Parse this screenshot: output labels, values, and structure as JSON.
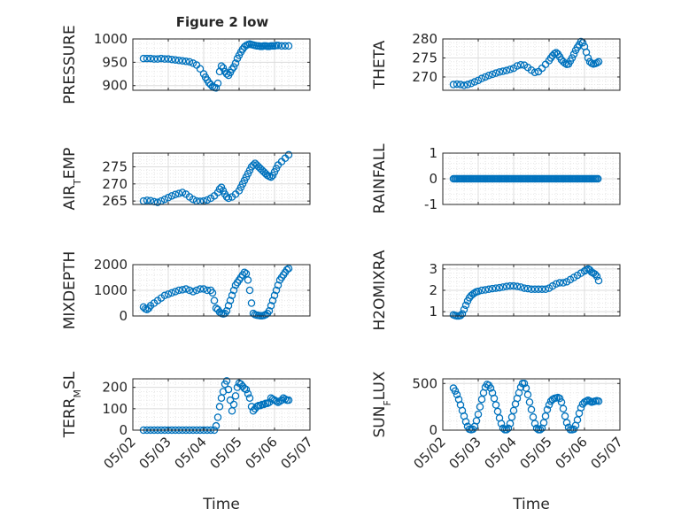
{
  "figure": {
    "title": "Figure 2 low"
  },
  "colors": {
    "marker": "#0072BD",
    "axis": "#262626",
    "grid": "#d9d9d9"
  },
  "chart_data": [
    {
      "type": "scatter",
      "title": "Figure 2 low",
      "xlabel": "",
      "ylabel": "PRESSURE",
      "ylim": [
        890,
        1000
      ],
      "yticks": [
        900,
        950,
        1000
      ],
      "yticklabels": [
        "900",
        "950",
        "1000"
      ],
      "xlim": [
        0,
        5
      ],
      "grid": true,
      "x": [
        0.3,
        0.4,
        0.5,
        0.6,
        0.7,
        0.8,
        0.9,
        1.0,
        1.1,
        1.2,
        1.3,
        1.4,
        1.5,
        1.6,
        1.7,
        1.8,
        1.9,
        2.0,
        2.05,
        2.1,
        2.15,
        2.2,
        2.25,
        2.3,
        2.35,
        2.4,
        2.45,
        2.5,
        2.55,
        2.6,
        2.65,
        2.7,
        2.75,
        2.8,
        2.85,
        2.9,
        2.95,
        3.0,
        3.05,
        3.1,
        3.15,
        3.2,
        3.25,
        3.3,
        3.35,
        3.4,
        3.45,
        3.5,
        3.55,
        3.6,
        3.65,
        3.7,
        3.75,
        3.8,
        3.85,
        3.9,
        3.95,
        4.0,
        4.05,
        4.1,
        4.2,
        4.3,
        4.4
      ],
      "y": [
        958,
        958,
        958,
        957,
        957,
        958,
        957,
        957,
        956,
        955,
        954,
        953,
        952,
        951,
        948,
        944,
        936,
        925,
        918,
        912,
        906,
        902,
        898,
        896,
        895,
        905,
        930,
        942,
        938,
        930,
        925,
        922,
        928,
        935,
        940,
        948,
        958,
        965,
        972,
        978,
        983,
        986,
        988,
        989,
        988,
        987,
        986,
        985,
        985,
        984,
        984,
        985,
        985,
        984,
        984,
        985,
        985,
        985,
        986,
        986,
        985,
        985,
        985
      ]
    },
    {
      "type": "scatter",
      "xlabel": "",
      "ylabel": "THETA",
      "ylim": [
        266.5,
        280
      ],
      "yticks": [
        270,
        275,
        280
      ],
      "yticklabels": [
        "270",
        "275",
        "280"
      ],
      "xlim": [
        0,
        5
      ],
      "grid": true,
      "x": [
        0.3,
        0.4,
        0.5,
        0.6,
        0.7,
        0.8,
        0.9,
        1.0,
        1.1,
        1.2,
        1.3,
        1.4,
        1.5,
        1.6,
        1.7,
        1.8,
        1.9,
        2.0,
        2.1,
        2.2,
        2.3,
        2.4,
        2.5,
        2.6,
        2.7,
        2.8,
        2.9,
        3.0,
        3.05,
        3.1,
        3.15,
        3.2,
        3.25,
        3.3,
        3.35,
        3.4,
        3.45,
        3.5,
        3.55,
        3.6,
        3.65,
        3.7,
        3.75,
        3.8,
        3.85,
        3.9,
        3.95,
        4.0,
        4.05,
        4.1,
        4.15,
        4.2,
        4.25,
        4.3,
        4.35,
        4.4
      ],
      "y": [
        268.0,
        268.1,
        268.0,
        267.8,
        268.0,
        268.3,
        268.7,
        269.1,
        269.6,
        270.0,
        270.4,
        270.7,
        271.0,
        271.3,
        271.5,
        271.7,
        272.0,
        272.3,
        272.9,
        273.2,
        273.1,
        272.5,
        271.8,
        271.2,
        271.4,
        272.3,
        273.3,
        274.3,
        275.0,
        275.6,
        276.1,
        276.4,
        276.0,
        275.3,
        274.5,
        274.0,
        273.6,
        273.3,
        273.4,
        274.2,
        275.0,
        276.0,
        277.0,
        277.8,
        278.5,
        279.3,
        279.0,
        278.0,
        276.5,
        275.0,
        274.0,
        273.6,
        273.4,
        273.5,
        273.7,
        274.0
      ]
    },
    {
      "type": "scatter",
      "xlabel": "",
      "ylabel": "AIR_TEMP",
      "ylim": [
        264,
        279
      ],
      "yticks": [
        265,
        270,
        275
      ],
      "yticklabels": [
        "265",
        "270",
        "275"
      ],
      "xlim": [
        0,
        5
      ],
      "grid": true,
      "x": [
        0.3,
        0.4,
        0.5,
        0.6,
        0.7,
        0.8,
        0.9,
        1.0,
        1.1,
        1.2,
        1.3,
        1.4,
        1.5,
        1.6,
        1.7,
        1.8,
        1.9,
        2.0,
        2.1,
        2.2,
        2.3,
        2.4,
        2.45,
        2.5,
        2.55,
        2.6,
        2.65,
        2.7,
        2.8,
        2.9,
        3.0,
        3.05,
        3.1,
        3.15,
        3.2,
        3.25,
        3.3,
        3.35,
        3.4,
        3.45,
        3.5,
        3.55,
        3.6,
        3.65,
        3.7,
        3.75,
        3.8,
        3.85,
        3.9,
        3.95,
        4.0,
        4.05,
        4.1,
        4.2,
        4.3,
        4.4
      ],
      "y": [
        265.0,
        265.2,
        265.1,
        264.8,
        264.6,
        265.0,
        265.5,
        266.0,
        266.5,
        266.9,
        267.2,
        267.5,
        267.0,
        266.2,
        265.5,
        265.0,
        264.9,
        265.0,
        265.3,
        265.8,
        266.5,
        267.5,
        268.5,
        269.0,
        268.0,
        267.0,
        266.2,
        265.8,
        266.2,
        267.0,
        268.0,
        269.0,
        270.0,
        271.0,
        272.0,
        273.0,
        274.0,
        275.0,
        275.5,
        276.0,
        275.5,
        275.0,
        274.5,
        274.0,
        273.5,
        273.0,
        272.5,
        272.2,
        272.0,
        272.5,
        273.5,
        274.5,
        275.5,
        276.5,
        277.5,
        278.5
      ]
    },
    {
      "type": "scatter",
      "xlabel": "",
      "ylabel": "RAINFALL",
      "ylim": [
        -1,
        1
      ],
      "yticks": [
        -1,
        0,
        1
      ],
      "yticklabels": [
        "-1",
        "0",
        "1"
      ],
      "xlim": [
        0,
        5
      ],
      "grid": true,
      "x_range": [
        0.3,
        4.4
      ],
      "constant_value": 0
    },
    {
      "type": "scatter",
      "xlabel": "",
      "ylabel": "MIXDEPTH",
      "ylim": [
        0,
        2000
      ],
      "yticks": [
        0,
        1000,
        2000
      ],
      "yticklabels": [
        "0",
        "1000",
        "2000"
      ],
      "xlim": [
        0,
        5
      ],
      "grid": true,
      "x": [
        0.3,
        0.35,
        0.4,
        0.45,
        0.5,
        0.6,
        0.7,
        0.8,
        0.9,
        1.0,
        1.1,
        1.2,
        1.3,
        1.4,
        1.5,
        1.6,
        1.7,
        1.8,
        1.9,
        2.0,
        2.1,
        2.2,
        2.25,
        2.3,
        2.35,
        2.4,
        2.45,
        2.5,
        2.55,
        2.6,
        2.65,
        2.7,
        2.75,
        2.8,
        2.85,
        2.9,
        2.95,
        3.0,
        3.05,
        3.1,
        3.15,
        3.2,
        3.25,
        3.3,
        3.35,
        3.4,
        3.45,
        3.5,
        3.55,
        3.6,
        3.65,
        3.7,
        3.75,
        3.8,
        3.85,
        3.9,
        3.95,
        4.0,
        4.05,
        4.1,
        4.15,
        4.2,
        4.25,
        4.3,
        4.35,
        4.4
      ],
      "y": [
        350,
        280,
        250,
        300,
        400,
        500,
        600,
        700,
        800,
        850,
        900,
        950,
        1000,
        1020,
        1050,
        1000,
        950,
        1000,
        1050,
        1050,
        1000,
        1000,
        900,
        600,
        300,
        250,
        150,
        100,
        80,
        100,
        200,
        400,
        600,
        800,
        1000,
        1200,
        1300,
        1400,
        1500,
        1600,
        1700,
        1650,
        1400,
        1000,
        500,
        100,
        50,
        30,
        20,
        10,
        10,
        20,
        50,
        100,
        200,
        400,
        600,
        800,
        1000,
        1200,
        1400,
        1500,
        1600,
        1700,
        1800,
        1850
      ]
    },
    {
      "type": "scatter",
      "xlabel": "",
      "ylabel": "H2OMIXRA",
      "ylim": [
        0.8,
        3.2
      ],
      "yticks": [
        1,
        2,
        3
      ],
      "yticklabels": [
        "1",
        "2",
        "3"
      ],
      "xlim": [
        0,
        5
      ],
      "grid": true,
      "x": [
        0.3,
        0.35,
        0.4,
        0.45,
        0.5,
        0.55,
        0.6,
        0.65,
        0.7,
        0.75,
        0.8,
        0.85,
        0.9,
        0.95,
        1.0,
        1.1,
        1.2,
        1.3,
        1.4,
        1.5,
        1.6,
        1.7,
        1.8,
        1.9,
        2.0,
        2.1,
        2.2,
        2.3,
        2.4,
        2.5,
        2.6,
        2.7,
        2.8,
        2.9,
        3.0,
        3.1,
        3.2,
        3.3,
        3.4,
        3.5,
        3.6,
        3.7,
        3.8,
        3.9,
        4.0,
        4.05,
        4.1,
        4.15,
        4.2,
        4.25,
        4.3,
        4.35,
        4.4
      ],
      "y": [
        0.85,
        0.82,
        0.8,
        0.8,
        0.82,
        0.9,
        1.1,
        1.3,
        1.5,
        1.65,
        1.75,
        1.82,
        1.88,
        1.93,
        1.95,
        2.0,
        2.02,
        2.05,
        2.08,
        2.1,
        2.12,
        2.15,
        2.18,
        2.2,
        2.2,
        2.18,
        2.15,
        2.1,
        2.08,
        2.05,
        2.05,
        2.05,
        2.05,
        2.05,
        2.1,
        2.2,
        2.3,
        2.35,
        2.35,
        2.4,
        2.5,
        2.6,
        2.7,
        2.8,
        2.9,
        2.95,
        3.0,
        2.95,
        2.85,
        2.8,
        2.75,
        2.65,
        2.45
      ]
    },
    {
      "type": "scatter",
      "xlabel": "Time",
      "ylabel": "TERR_MSL",
      "ylim": [
        0,
        240
      ],
      "yticks": [
        0,
        100,
        200
      ],
      "yticklabels": [
        "0",
        "100",
        "200"
      ],
      "xlim": [
        0,
        5
      ],
      "xticks": [
        0,
        1,
        2,
        3,
        4,
        5
      ],
      "xticklabels": [
        "05/02",
        "05/03",
        "05/04",
        "05/05",
        "05/06",
        "05/07"
      ],
      "grid": true,
      "x": [
        0.3,
        0.4,
        0.5,
        0.6,
        0.7,
        0.8,
        0.9,
        1.0,
        1.1,
        1.2,
        1.3,
        1.4,
        1.5,
        1.6,
        1.7,
        1.8,
        1.9,
        2.0,
        2.1,
        2.2,
        2.3,
        2.35,
        2.4,
        2.45,
        2.5,
        2.55,
        2.6,
        2.65,
        2.7,
        2.75,
        2.8,
        2.85,
        2.9,
        2.95,
        3.0,
        3.05,
        3.1,
        3.15,
        3.2,
        3.25,
        3.3,
        3.35,
        3.4,
        3.45,
        3.5,
        3.55,
        3.6,
        3.65,
        3.7,
        3.75,
        3.8,
        3.85,
        3.9,
        3.95,
        4.0,
        4.05,
        4.1,
        4.15,
        4.2,
        4.25,
        4.3,
        4.35,
        4.4
      ],
      "y": [
        0,
        0,
        0,
        0,
        0,
        0,
        0,
        0,
        0,
        0,
        0,
        0,
        0,
        0,
        0,
        0,
        0,
        0,
        0,
        0,
        0,
        20,
        60,
        110,
        150,
        180,
        215,
        230,
        190,
        140,
        90,
        120,
        160,
        200,
        220,
        215,
        205,
        195,
        190,
        170,
        150,
        110,
        90,
        100,
        110,
        115,
        115,
        120,
        120,
        125,
        125,
        130,
        150,
        145,
        140,
        135,
        130,
        135,
        140,
        150,
        145,
        140,
        140
      ]
    },
    {
      "type": "scatter",
      "xlabel": "Time",
      "ylabel": "SUN_FLUX",
      "ylim": [
        0,
        550
      ],
      "yticks": [
        0,
        500
      ],
      "yticklabels": [
        "0",
        "500"
      ],
      "xlim": [
        0,
        5
      ],
      "xticks": [
        0,
        1,
        2,
        3,
        4,
        5
      ],
      "xticklabels": [
        "05/02",
        "05/03",
        "05/04",
        "05/05",
        "05/06",
        "05/07"
      ],
      "grid": true,
      "x": [
        0.3,
        0.35,
        0.4,
        0.45,
        0.5,
        0.55,
        0.6,
        0.65,
        0.7,
        0.75,
        0.8,
        0.85,
        0.9,
        0.95,
        1.0,
        1.05,
        1.1,
        1.15,
        1.2,
        1.25,
        1.3,
        1.35,
        1.4,
        1.45,
        1.5,
        1.55,
        1.6,
        1.65,
        1.7,
        1.75,
        1.8,
        1.85,
        1.9,
        1.95,
        2.0,
        2.05,
        2.1,
        2.15,
        2.2,
        2.25,
        2.3,
        2.35,
        2.4,
        2.45,
        2.5,
        2.55,
        2.6,
        2.65,
        2.7,
        2.75,
        2.8,
        2.85,
        2.9,
        2.95,
        3.0,
        3.05,
        3.1,
        3.15,
        3.2,
        3.25,
        3.3,
        3.35,
        3.4,
        3.45,
        3.5,
        3.55,
        3.6,
        3.65,
        3.7,
        3.75,
        3.8,
        3.85,
        3.9,
        3.95,
        4.0,
        4.05,
        4.1,
        4.15,
        4.2,
        4.25,
        4.3,
        4.35,
        4.4
      ],
      "y": [
        450,
        420,
        380,
        330,
        270,
        210,
        150,
        90,
        40,
        10,
        5,
        10,
        40,
        100,
        170,
        250,
        330,
        400,
        460,
        490,
        480,
        450,
        400,
        340,
        270,
        200,
        130,
        70,
        20,
        5,
        5,
        20,
        70,
        140,
        210,
        280,
        340,
        400,
        460,
        500,
        500,
        450,
        380,
        300,
        220,
        140,
        70,
        20,
        5,
        5,
        20,
        80,
        150,
        220,
        270,
        310,
        330,
        340,
        345,
        350,
        340,
        300,
        230,
        150,
        80,
        30,
        5,
        5,
        10,
        50,
        110,
        180,
        240,
        280,
        300,
        310,
        320,
        310,
        300,
        305,
        310,
        315,
        310
      ]
    }
  ]
}
